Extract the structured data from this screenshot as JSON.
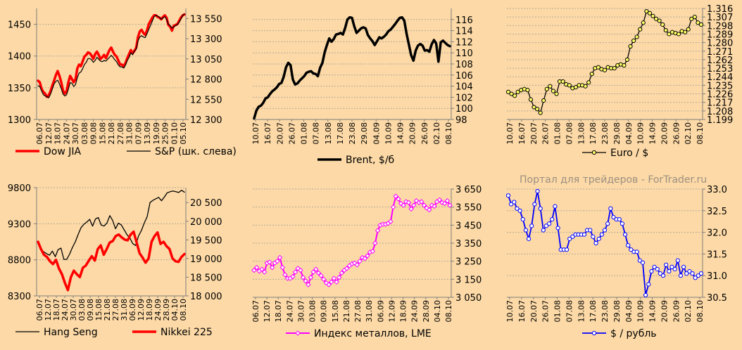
{
  "watermark": "Портал для трейдеров - ForTrader.ru",
  "colors": {
    "background": "#fcd9a6",
    "grid": "#b8aa99",
    "axis": "#7f7f7f",
    "red": "#ff0000",
    "black": "#000000",
    "olive_marker": "#ffff66",
    "magenta": "#ff00ff",
    "blue": "#0000ff"
  },
  "chart_data": [
    {
      "id": "dow-sp",
      "type": "line",
      "x_ticks": [
        "06.07",
        "12.07",
        "18.07",
        "24.07",
        "30.07",
        "03.08",
        "09.08",
        "15.08",
        "21.08",
        "27.08",
        "31.08",
        "07.09",
        "13.09",
        "19.09",
        "25.09",
        "01.10",
        "05.10"
      ],
      "y_left": {
        "min": 1300,
        "max": 1475,
        "ticks": [
          1300,
          1350,
          1400,
          1450
        ]
      },
      "y_right": {
        "min": 12300,
        "max": 13675,
        "ticks": [
          "12 300",
          "12 550",
          "12 800",
          "13 050",
          "13 300",
          "13 550"
        ]
      },
      "series": [
        {
          "name": "Dow JIA",
          "axis": "right",
          "color": "#ff0000",
          "width": 3.5,
          "values": [
            12780,
            12760,
            12680,
            12640,
            12620,
            12580,
            12600,
            12650,
            12720,
            12780,
            12850,
            12900,
            12840,
            12760,
            12660,
            12620,
            12650,
            12760,
            12840,
            12800,
            12760,
            12800,
            12930,
            12980,
            12960,
            13020,
            13080,
            13100,
            13130,
            13120,
            13090,
            13050,
            13110,
            13140,
            13100,
            13050,
            13070,
            13100,
            13060,
            13110,
            13160,
            13190,
            13140,
            13100,
            13080,
            13030,
            12980,
            12980,
            12960,
            13000,
            13060,
            13110,
            13160,
            13120,
            13150,
            13190,
            13320,
            13390,
            13410,
            13370,
            13350,
            13400,
            13480,
            13520,
            13560,
            13590,
            13590,
            13570,
            13560,
            13540,
            13570,
            13590,
            13560,
            13470,
            13450,
            13400,
            13460,
            13470,
            13480,
            13520,
            13560,
            13590,
            13600
          ]
        },
        {
          "name": "S&P (шк. слева)",
          "axis": "left",
          "color": "#000000",
          "width": 1.2,
          "values": [
            1353,
            1352,
            1345,
            1339,
            1337,
            1336,
            1334,
            1340,
            1348,
            1356,
            1360,
            1362,
            1356,
            1349,
            1340,
            1337,
            1339,
            1348,
            1358,
            1357,
            1352,
            1355,
            1366,
            1373,
            1375,
            1380,
            1387,
            1390,
            1396,
            1396,
            1394,
            1390,
            1393,
            1398,
            1395,
            1392,
            1391,
            1393,
            1392,
            1395,
            1398,
            1401,
            1398,
            1394,
            1391,
            1386,
            1383,
            1383,
            1381,
            1386,
            1393,
            1398,
            1405,
            1402,
            1408,
            1411,
            1424,
            1430,
            1432,
            1430,
            1429,
            1435,
            1442,
            1448,
            1455,
            1462,
            1464,
            1463,
            1461,
            1458,
            1460,
            1462,
            1458,
            1450,
            1448,
            1444,
            1446,
            1448,
            1450,
            1453,
            1458,
            1464,
            1466
          ]
        }
      ],
      "legend": [
        {
          "label": "Dow JIA",
          "color": "#ff0000",
          "width": 3.5
        },
        {
          "label": "S&P (шк. слева)",
          "color": "#000000",
          "width": 1.2
        }
      ]
    },
    {
      "id": "brent",
      "type": "line",
      "x_ticks": [
        "10.07",
        "16.07",
        "20.07",
        "26.07",
        "01.08",
        "07.08",
        "13.08",
        "17.08",
        "23.08",
        "29.08",
        "04.09",
        "10.09",
        "14.09",
        "20.09",
        "26.09",
        "02.10",
        "08.10"
      ],
      "y_right": {
        "min": 98,
        "max": 118,
        "ticks": [
          98,
          100,
          102,
          104,
          106,
          108,
          110,
          112,
          114,
          116
        ]
      },
      "series": [
        {
          "name": "Brent, $/б",
          "axis": "right",
          "color": "#000000",
          "width": 3.5,
          "values": [
            98.2,
            99.6,
            100.3,
            100.5,
            101.0,
            101.8,
            102.0,
            102.6,
            103.1,
            103.4,
            103.8,
            104.4,
            104.6,
            105.7,
            107.4,
            108.2,
            107.8,
            105.2,
            104.3,
            104.5,
            105.0,
            105.4,
            105.8,
            106.4,
            106.6,
            106.7,
            106.3,
            106.2,
            105.8,
            107.3,
            108.2,
            110.1,
            111.4,
            112.6,
            112.0,
            112.5,
            113.3,
            113.4,
            113.6,
            113.3,
            114.5,
            116.0,
            116.4,
            116.3,
            114.8,
            113.6,
            114.0,
            114.4,
            114.6,
            114.4,
            113.2,
            112.6,
            112.1,
            111.4,
            112.1,
            112.8,
            112.6,
            112.9,
            113.3,
            113.9,
            114.2,
            114.7,
            115.2,
            115.8,
            116.3,
            116.4,
            115.8,
            113.4,
            111.5,
            109.6,
            108.6,
            110.4,
            111.3,
            111.6,
            111.3,
            110.4,
            110.5,
            110.2,
            111.5,
            112.3,
            111.7,
            108.4,
            111.9,
            112.2,
            111.8,
            111.4,
            111.2
          ]
        }
      ],
      "legend": [
        {
          "label": "Brent, $/б",
          "color": "#000000",
          "width": 3.5
        }
      ]
    },
    {
      "id": "euro",
      "type": "line",
      "x_ticks": [
        "10.07",
        "16.07",
        "20.07",
        "26.07",
        "01.08",
        "07.08",
        "13.08",
        "17.08",
        "23.08",
        "29.08",
        "04.09",
        "10.09",
        "14.09",
        "20.09",
        "26.09",
        "02.10",
        "08.10"
      ],
      "y_right": {
        "min": 1.199,
        "max": 1.316,
        "ticks": [
          "1.199",
          "1.208",
          "1.217",
          "1.226",
          "1.235",
          "1.244",
          "1.253",
          "1.262",
          "1.271",
          "1.280",
          "1.289",
          "1.298",
          "1.307",
          "1.316"
        ]
      },
      "series": [
        {
          "name": "Euro / $",
          "axis": "right",
          "color": "#000000",
          "width": 1.3,
          "marker": "circle",
          "marker_fill": "#ffff66",
          "values": [
            1.228,
            1.226,
            1.224,
            1.228,
            1.23,
            1.231,
            1.23,
            1.22,
            1.212,
            1.21,
            1.206,
            1.219,
            1.231,
            1.234,
            1.229,
            1.226,
            1.239,
            1.239,
            1.236,
            1.235,
            1.232,
            1.233,
            1.235,
            1.235,
            1.234,
            1.238,
            1.247,
            1.253,
            1.254,
            1.252,
            1.251,
            1.254,
            1.253,
            1.253,
            1.256,
            1.257,
            1.256,
            1.262,
            1.276,
            1.282,
            1.286,
            1.294,
            1.301,
            1.313,
            1.311,
            1.308,
            1.305,
            1.303,
            1.299,
            1.293,
            1.289,
            1.291,
            1.29,
            1.289,
            1.292,
            1.291,
            1.294,
            1.305,
            1.307,
            1.301,
            1.299
          ]
        }
      ],
      "legend": [
        {
          "label": "Euro / $",
          "color": "#000000",
          "width": 1.3,
          "marker": "circle",
          "marker_fill": "#ffff66"
        }
      ]
    },
    {
      "id": "hangseng-nikkei",
      "type": "line",
      "x_ticks": [
        "06.07",
        "12.07",
        "18.07",
        "24.07",
        "30.07",
        "03.08",
        "09.08",
        "15.08",
        "21.08",
        "27.08",
        "31.08",
        "06.09",
        "12.09",
        "18.09",
        "24.09",
        "28.09",
        "04.10",
        "08.10"
      ],
      "y_left": {
        "min": 8300,
        "max": 9800,
        "ticks": [
          8300,
          8800,
          9300,
          9800
        ]
      },
      "y_right": {
        "min": 18000,
        "max": 20900,
        "ticks": [
          "18 000",
          "18 500",
          "19 000",
          "19 500",
          "20 000",
          "20 500"
        ]
      },
      "series": [
        {
          "name": "Hang Seng",
          "axis": "right",
          "color": "#000000",
          "width": 1.3,
          "values": [
            19450,
            19250,
            19180,
            19130,
            19090,
            19200,
            19050,
            19240,
            19280,
            18980,
            18980,
            19120,
            19300,
            19450,
            19650,
            19830,
            19920,
            19980,
            20050,
            19870,
            20060,
            20100,
            19900,
            19870,
            19950,
            20150,
            20020,
            19800,
            19950,
            19900,
            19770,
            19640,
            19550,
            19400,
            19350,
            19600,
            19750,
            19950,
            20120,
            20500,
            20560,
            20600,
            20640,
            20550,
            20650,
            20760,
            20790,
            20810,
            20790,
            20770,
            20830,
            20780
          ]
        },
        {
          "name": "Nikkei 225",
          "axis": "left",
          "color": "#ff0000",
          "width": 3.5,
          "values": [
            9050,
            8950,
            8870,
            8840,
            8780,
            8740,
            8800,
            8680,
            8600,
            8480,
            8380,
            8560,
            8650,
            8600,
            8560,
            8690,
            8720,
            8790,
            8850,
            8790,
            8950,
            9000,
            8870,
            8950,
            9040,
            9060,
            9130,
            9150,
            9110,
            9080,
            9070,
            9150,
            9190,
            9040,
            8890,
            8830,
            8760,
            8820,
            9050,
            9130,
            9180,
            9020,
            9050,
            8990,
            8950,
            8820,
            8780,
            8770,
            8840,
            8880
          ]
        }
      ],
      "legend": [
        {
          "label": "Hang Seng",
          "color": "#000000",
          "width": 1.3
        },
        {
          "label": "Nikkei 225",
          "color": "#ff0000",
          "width": 3.5
        }
      ]
    },
    {
      "id": "lme",
      "type": "line",
      "x_ticks": [
        "06.07",
        "12.07",
        "18.07",
        "24.07",
        "30.07",
        "03.08",
        "09.08",
        "15.08",
        "21.08",
        "27.08",
        "31.08",
        "06.09",
        "12.09",
        "18.09",
        "24.09",
        "28.09",
        "04.10",
        "08.10"
      ],
      "y_right": {
        "min": 3050,
        "max": 3650,
        "ticks": [
          "3 050",
          "3 150",
          "3 250",
          "3 350",
          "3 450",
          "3 550",
          "3 650"
        ]
      },
      "series": [
        {
          "name": "Индекс металлов, LME",
          "axis": "right",
          "color": "#ff00ff",
          "width": 2.0,
          "marker": "diamond",
          "marker_fill": "#ffffff",
          "values": [
            3200,
            3215,
            3195,
            3205,
            3190,
            3240,
            3245,
            3215,
            3240,
            3250,
            3270,
            3215,
            3175,
            3155,
            3155,
            3165,
            3190,
            3210,
            3200,
            3160,
            3140,
            3120,
            3160,
            3190,
            3205,
            3185,
            3170,
            3150,
            3130,
            3120,
            3135,
            3155,
            3135,
            3160,
            3185,
            3200,
            3210,
            3225,
            3235,
            3240,
            3230,
            3250,
            3270,
            3265,
            3280,
            3300,
            3305,
            3350,
            3420,
            3450,
            3455,
            3455,
            3460,
            3470,
            3550,
            3610,
            3595,
            3570,
            3560,
            3580,
            3575,
            3540,
            3560,
            3585,
            3575,
            3580,
            3560,
            3545,
            3535,
            3560,
            3555,
            3580,
            3590,
            3575,
            3570,
            3585,
            3560
          ]
        }
      ],
      "legend": [
        {
          "label": "Индекс металлов, LME",
          "color": "#ff00ff",
          "width": 2.0,
          "marker": "diamond",
          "marker_fill": "#ffffff"
        }
      ]
    },
    {
      "id": "usd-rub",
      "type": "line",
      "x_ticks": [
        "10.07",
        "16.07",
        "20.07",
        "26.07",
        "01.08",
        "07.08",
        "13.08",
        "17.08",
        "23.08",
        "29.08",
        "04.09",
        "10.09",
        "14.09",
        "20.09",
        "26.09",
        "02.10",
        "08.10"
      ],
      "y_right": {
        "min": 30.5,
        "max": 33.0,
        "ticks": [
          "30.5",
          "31.0",
          "31.5",
          "32.0",
          "32.5",
          "33.0"
        ]
      },
      "series": [
        {
          "name": "$ / рубль",
          "axis": "right",
          "color": "#0000ff",
          "width": 1.8,
          "marker": "circle",
          "marker_fill": "#ffffff",
          "values": [
            32.85,
            32.65,
            32.7,
            32.55,
            32.5,
            32.3,
            32.05,
            31.85,
            32.15,
            32.65,
            32.95,
            32.55,
            32.05,
            32.15,
            32.2,
            32.3,
            32.6,
            32.1,
            31.6,
            31.6,
            31.6,
            31.85,
            31.9,
            31.95,
            31.95,
            31.95,
            31.95,
            32.05,
            32.05,
            31.9,
            31.75,
            31.85,
            31.95,
            32.05,
            32.2,
            32.55,
            32.35,
            32.3,
            32.3,
            32.2,
            31.95,
            31.7,
            31.6,
            31.55,
            31.55,
            31.35,
            31.3,
            30.55,
            30.8,
            31.1,
            31.2,
            31.15,
            31.05,
            31.0,
            31.25,
            31.1,
            31.2,
            31.15,
            31.35,
            31.0,
            31.2,
            31.05,
            31.1,
            31.05,
            30.95,
            31.0,
            31.05
          ]
        }
      ],
      "legend": [
        {
          "label": "$ / рубль",
          "color": "#0000ff",
          "width": 1.8,
          "marker": "circle",
          "marker_fill": "#ffffff"
        }
      ]
    }
  ]
}
